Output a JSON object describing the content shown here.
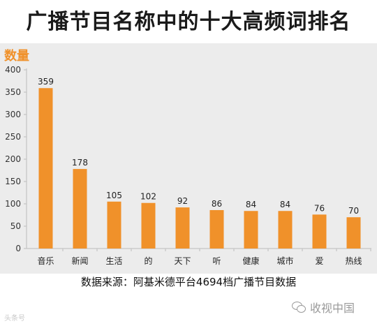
{
  "title": "广播节目名称中的十大高频词排名",
  "chart_data": {
    "type": "bar",
    "ylabel": "数量",
    "ylim": [
      0,
      400
    ],
    "yticks": [
      0,
      50,
      100,
      150,
      200,
      250,
      300,
      350,
      400
    ],
    "categories": [
      "音乐",
      "新闻",
      "生活",
      "的",
      "天下",
      "听",
      "健康",
      "城市",
      "爱",
      "热线"
    ],
    "values": [
      359,
      178,
      105,
      102,
      92,
      86,
      84,
      84,
      76,
      70
    ],
    "bar_color": "#f0912a",
    "grid": false
  },
  "source": "数据来源：阿基米德平台4694档广播节目数据",
  "watermark_left": "头条号",
  "watermark_right": {
    "icon": "wechat-icon",
    "text": "收视中国"
  }
}
